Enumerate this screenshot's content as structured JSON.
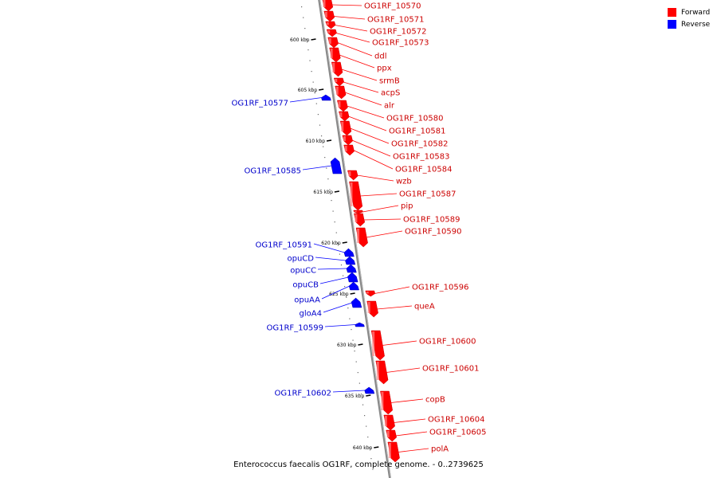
{
  "caption": "Enterococcus faecalis OG1RF, complete genome. - 0..2739625",
  "legend": [
    {
      "label": "Forward",
      "color": "#ff0000"
    },
    {
      "label": "Reverse",
      "color": "#0000ff"
    }
  ],
  "colors": {
    "forward": "#ff0000",
    "reverse": "#0000ff",
    "backbone": "#888888"
  },
  "ticks": [
    "600 kbp",
    "605 kbp",
    "610 kbp",
    "615 kbp",
    "620 kbp",
    "625 kbp",
    "630 kbp",
    "635 kbp",
    "640 kbp"
  ],
  "genes_forward": [
    "OG1RF_10570",
    "OG1RF_10571",
    "OG1RF_10572",
    "OG1RF_10573",
    "ddl",
    "ppx",
    "srmB",
    "acpS",
    "alr",
    "OG1RF_10580",
    "OG1RF_10581",
    "OG1RF_10582",
    "OG1RF_10583",
    "OG1RF_10584",
    "wzb",
    "OG1RF_10587",
    "pip",
    "OG1RF_10589",
    "OG1RF_10590",
    "OG1RF_10596",
    "queA",
    "OG1RF_10600",
    "OG1RF_10601",
    "copB",
    "OG1RF_10604",
    "OG1RF_10605",
    "polA"
  ],
  "genes_reverse": [
    "OG1RF_10577",
    "OG1RF_10585",
    "OG1RF_10591",
    "opuCD",
    "opuCC",
    "opuCB",
    "opuAA",
    "gloA4",
    "OG1RF_10599",
    "OG1RF_10602"
  ]
}
